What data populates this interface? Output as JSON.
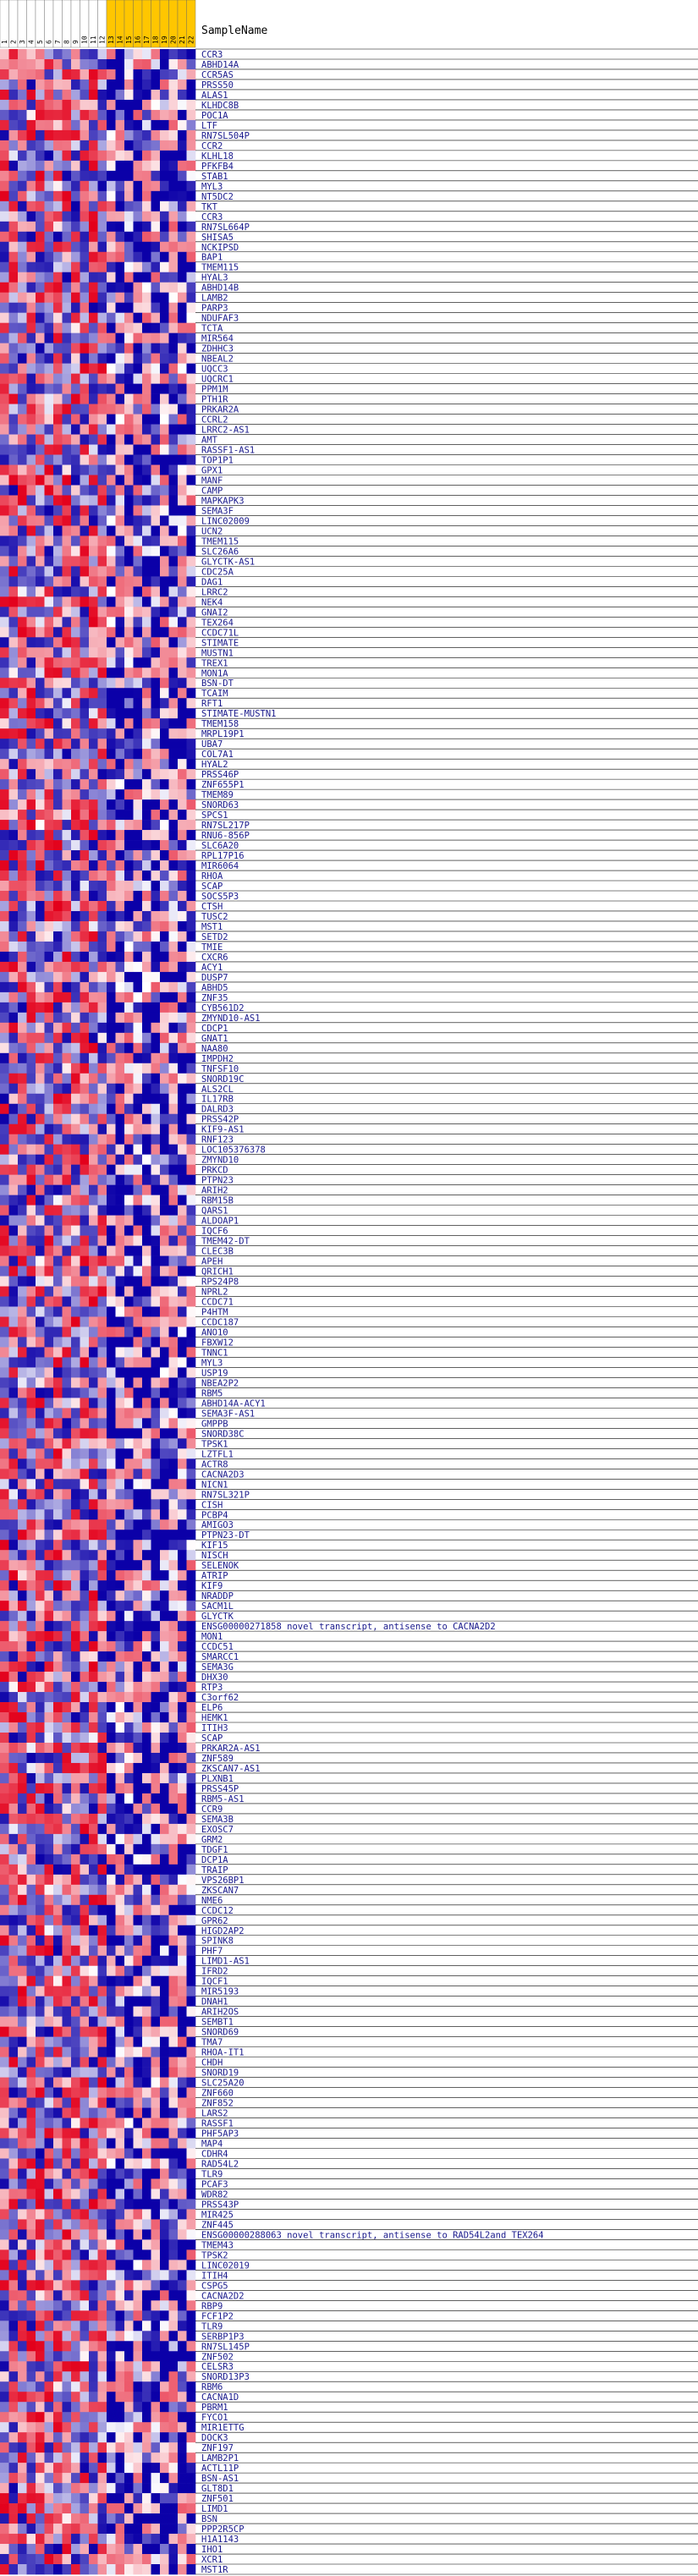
{
  "header": {
    "column_title": "SampleName"
  },
  "colors": {
    "low": "#0b00a8",
    "mid": "#ffffff",
    "high": "#e3001b",
    "highlight": "#ffc600",
    "gridline": "#000000",
    "label_text": "#1a1a8c"
  },
  "chart_data": {
    "type": "heatmap",
    "columns": [
      "1",
      "2",
      "3",
      "4",
      "5",
      "6",
      "7",
      "8",
      "9",
      "10",
      "11",
      "12",
      "13",
      "14",
      "15",
      "16",
      "17",
      "18",
      "19",
      "20",
      "21",
      "22"
    ],
    "highlighted_columns": [
      12,
      13,
      14,
      15,
      16,
      17,
      18,
      19,
      20,
      21
    ],
    "rows": [
      "CCR3",
      "ABHD14A",
      "CCR5AS",
      "PRSS50",
      "ALAS1",
      "KLHDC8B",
      "POC1A",
      "LTF",
      "RN7SL504P",
      "CCR2",
      "KLHL18",
      "PFKFB4",
      "STAB1",
      "MYL3",
      "NT5DC2",
      "TKT",
      "CCR3",
      "RN7SL664P",
      "SHISA5",
      "NCKIPSD",
      "BAP1",
      "TMEM115",
      "HYAL3",
      "ABHD14B",
      "LAMB2",
      "PARP3",
      "NDUFAF3",
      "TCTA",
      "MIR564",
      "ZDHHC3",
      "NBEAL2",
      "UQCC3",
      "UQCRC1",
      "PPM1M",
      "PTH1R",
      "PRKAR2A",
      "CCRL2",
      "LRRC2-AS1",
      "AMT",
      "RASSF1-AS1",
      "TOP1P1",
      "GPX1",
      "MANF",
      "CAMP",
      "MAPKAPK3",
      "SEMA3F",
      "LINC02009",
      "UCN2",
      "TMEM115",
      "SLC26A6",
      "GLYCTK-AS1",
      "CDC25A",
      "DAG1",
      "LRRC2",
      "NEK4",
      "GNAI2",
      "TEX264",
      "CCDC71L",
      "STIMATE",
      "MUSTN1",
      "TREX1",
      "MON1A",
      "BSN-DT",
      "TCAIM",
      "RFT1",
      "STIMATE-MUSTN1",
      "TMEM158",
      "MRPL19P1",
      "UBA7",
      "COL7A1",
      "HYAL2",
      "PRSS46P",
      "ZNF655P1",
      "TMEM89",
      "SNORD63",
      "SPCS1",
      "RN7SL217P",
      "RNU6-856P",
      "SLC6A20",
      "RPL17P16",
      "MIR6064",
      "RHOA",
      "SCAP",
      "SOCS5P3",
      "CTSH",
      "TUSC2",
      "MST1",
      "SETD2",
      "TMIE",
      "CXCR6",
      "ACY1",
      "DUSP7",
      "ABHD5",
      "ZNF35",
      "CYB561D2",
      "ZMYND10-AS1",
      "CDCP1",
      "GNAT1",
      "NAA80",
      "IMPDH2",
      "TNFSF10",
      "SNORD19C",
      "ALS2CL",
      "IL17RB",
      "DALRD3",
      "PRSS42P",
      "KIF9-AS1",
      "RNF123",
      "LOC105376378",
      "ZMYND10",
      "PRKCD",
      "PTPN23",
      "ARIH2",
      "RBM15B",
      "QARS1",
      "ALDOAP1",
      "IQCF6",
      "TMEM42-DT",
      "CLEC3B",
      "APEH",
      "QRICH1",
      "RPS24P8",
      "NPRL2",
      "CCDC71",
      "P4HTM",
      "CCDC187",
      "ANO10",
      "FBXW12",
      "TNNC1",
      "MYL3",
      "USP19",
      "NBEA2P2",
      "RBM5",
      "ABHD14A-ACY1",
      "SEMA3F-AS1",
      "GMPPB",
      "SNORD38C",
      "TPSK1",
      "LZTFL1",
      "ACTR8",
      "CACNA2D3",
      "NICN1",
      "RN7SL321P",
      "CISH",
      "PCBP4",
      "AMIGO3",
      "PTPN23-DT",
      "KIF15",
      "NISCH",
      "SELENOK",
      "ATRIP",
      "KIF9",
      "NRADDP",
      "SACM1L",
      "GLYCTK",
      "ENSG00000271858",
      "MON1",
      "CCDC51",
      "SMARCC1",
      "SEMA3G",
      "DHX30",
      "RTP3",
      "C3orf62",
      "ELP6",
      "HEMK1",
      "ITIH3",
      "SCAP",
      "PRKAR2A-AS1",
      "ZNF589",
      "ZKSCAN7-AS1",
      "PLXNB1",
      "PRSS45P",
      "RBM5-AS1",
      "CCR9",
      "SEMA3B",
      "EXOSC7",
      "GRM2",
      "TDGF1",
      "DCP1A",
      "TRAIP",
      "VPS26BP1",
      "ZKSCAN7",
      "NME6",
      "CCDC12",
      "GPR62",
      "HIGD2AP2",
      "SPINK8",
      "PHF7",
      "LIMD1-AS1",
      "IFRD2",
      "IQCF1",
      "MIR5193",
      "DNAH1",
      "ARIH2OS",
      "SEMBT1",
      "SNORD69",
      "TMA7",
      "RHOA-IT1",
      "CHDH",
      "SNORD19",
      "SLC25A20",
      "ZNF660",
      "ZNF852",
      "LARS2",
      "RASSF1",
      "PHF5AP3",
      "MAP4",
      "CDHR4",
      "RAD54L2",
      "TLR9",
      "PCAF3",
      "WDR82",
      "PRSS43P",
      "MIR425",
      "ZNF445",
      "ENSG00000288063",
      "TMEM43",
      "TPSK2",
      "LINC02019",
      "ITIH4",
      "CSPG5",
      "CACNA2D2",
      "RBP9",
      "FCF1P2",
      "TLR9",
      "SERBP1P3",
      "RN7SL145P",
      "ZNF502",
      "CELSR3",
      "SNORD13P3",
      "RBM6",
      "CACNA1D",
      "PBRM1",
      "FYCO1",
      "MIR1ETTG",
      "DOCK3",
      "ZNF197",
      "LAMB2P1",
      "ACTL11P",
      "BSN-AS1",
      "GLT8D1",
      "ZNF501",
      "LIMD1",
      "BSN",
      "PPP2R5CP",
      "H1A1143",
      "IHO1",
      "XCR1",
      "MST1R"
    ],
    "row_annotations": {
      "ENSG00000271858": "ENSG00000271858  novel transcript, antisense to CACNA2D2",
      "ENSG00000288063": "ENSG00000288063  novel transcript, antisense to RAD54L2and TEX264"
    },
    "value_range": [
      -1,
      1
    ],
    "seed": 20240611
  }
}
